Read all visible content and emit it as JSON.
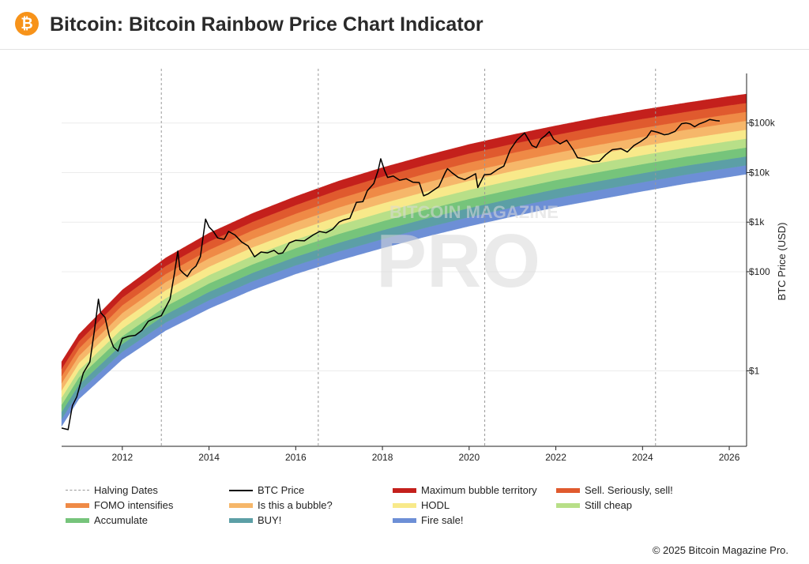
{
  "header": {
    "logo_icon": "bitcoin-icon",
    "logo_glyph": "₿",
    "title": "Bitcoin: Bitcoin Rainbow Price Chart Indicator"
  },
  "watermark": {
    "line1": "BITCOIN MAGAZINE",
    "line2": "PRO"
  },
  "chart_data": {
    "type": "line",
    "title": "Bitcoin: Bitcoin Rainbow Price Chart Indicator",
    "ylabel": "BTC Price (USD)",
    "xlabel": "",
    "y_scale": "log",
    "xlim": [
      2010.6,
      2026.4
    ],
    "ylim": [
      0.03,
      1000000
    ],
    "x_ticks": [
      {
        "value": 2012,
        "label": "2012"
      },
      {
        "value": 2014,
        "label": "2014"
      },
      {
        "value": 2016,
        "label": "2016"
      },
      {
        "value": 2018,
        "label": "2018"
      },
      {
        "value": 2020,
        "label": "2020"
      },
      {
        "value": 2022,
        "label": "2022"
      },
      {
        "value": 2024,
        "label": "2024"
      },
      {
        "value": 2026,
        "label": "2026"
      }
    ],
    "y_ticks": [
      {
        "value": 1,
        "label": "$1"
      },
      {
        "value": 100,
        "label": "$100"
      },
      {
        "value": 1000,
        "label": "$1k"
      },
      {
        "value": 10000,
        "label": "$10k"
      },
      {
        "value": 100000,
        "label": "$100k"
      }
    ],
    "halving_dates": [
      2012.9,
      2016.52,
      2020.36,
      2024.3
    ],
    "rainbow": {
      "bottom_curve": [
        [
          2010.6,
          0.076
        ],
        [
          2011,
          0.27
        ],
        [
          2012,
          1.7
        ],
        [
          2013,
          6.5
        ],
        [
          2014,
          18
        ],
        [
          2015,
          43
        ],
        [
          2016,
          90
        ],
        [
          2017,
          170
        ],
        [
          2018,
          300
        ],
        [
          2019,
          510
        ],
        [
          2020,
          830
        ],
        [
          2021,
          1300
        ],
        [
          2022,
          2000
        ],
        [
          2023,
          2900
        ],
        [
          2024,
          4200
        ],
        [
          2025,
          6000
        ],
        [
          2026,
          8200
        ],
        [
          2026.4,
          9300
        ]
      ],
      "top_curve": [
        [
          2010.6,
          1.53
        ],
        [
          2011,
          5.5
        ],
        [
          2012,
          43
        ],
        [
          2013,
          190
        ],
        [
          2014,
          600
        ],
        [
          2015,
          1500
        ],
        [
          2016,
          3300
        ],
        [
          2017,
          6800
        ],
        [
          2018,
          12600
        ],
        [
          2019,
          22000
        ],
        [
          2020,
          37000
        ],
        [
          2021,
          58000
        ],
        [
          2022,
          88000
        ],
        [
          2023,
          130000
        ],
        [
          2024,
          185000
        ],
        [
          2025,
          255000
        ],
        [
          2026,
          345000
        ],
        [
          2026.4,
          385000
        ]
      ],
      "bands": [
        {
          "name": "Fire sale!",
          "color": "#6d8fd6"
        },
        {
          "name": "BUY!",
          "color": "#5c9fa6"
        },
        {
          "name": "Accumulate",
          "color": "#76c47b"
        },
        {
          "name": "Still cheap",
          "color": "#b8df88"
        },
        {
          "name": "HODL",
          "color": "#f8e98a"
        },
        {
          "name": "Is this a bubble?",
          "color": "#f6b76a"
        },
        {
          "name": "FOMO intensifies",
          "color": "#ef8a46"
        },
        {
          "name": "Sell. Seriously, sell!",
          "color": "#e05a2e"
        },
        {
          "name": "Maximum bubble territory",
          "color": "#c4201c"
        }
      ]
    },
    "series": [
      {
        "name": "BTC Price",
        "color": "#000000",
        "points": [
          [
            2010.6,
            0.07
          ],
          [
            2010.75,
            0.065
          ],
          [
            2010.85,
            0.2
          ],
          [
            2010.95,
            0.3
          ],
          [
            2011.1,
            0.9
          ],
          [
            2011.25,
            1.5
          ],
          [
            2011.35,
            6
          ],
          [
            2011.45,
            28
          ],
          [
            2011.5,
            15
          ],
          [
            2011.6,
            12
          ],
          [
            2011.7,
            5
          ],
          [
            2011.8,
            3
          ],
          [
            2011.9,
            2.5
          ],
          [
            2012.0,
            4.5
          ],
          [
            2012.15,
            5
          ],
          [
            2012.3,
            5.2
          ],
          [
            2012.45,
            6.5
          ],
          [
            2012.6,
            10
          ],
          [
            2012.75,
            11.5
          ],
          [
            2012.9,
            13
          ],
          [
            2013.1,
            28
          ],
          [
            2013.2,
            90
          ],
          [
            2013.28,
            260
          ],
          [
            2013.33,
            110
          ],
          [
            2013.4,
            95
          ],
          [
            2013.5,
            80
          ],
          [
            2013.6,
            110
          ],
          [
            2013.7,
            130
          ],
          [
            2013.8,
            200
          ],
          [
            2013.92,
            1150
          ],
          [
            2014.0,
            800
          ],
          [
            2014.1,
            650
          ],
          [
            2014.2,
            480
          ],
          [
            2014.35,
            450
          ],
          [
            2014.45,
            650
          ],
          [
            2014.6,
            550
          ],
          [
            2014.75,
            400
          ],
          [
            2014.9,
            330
          ],
          [
            2015.05,
            200
          ],
          [
            2015.2,
            250
          ],
          [
            2015.35,
            240
          ],
          [
            2015.5,
            270
          ],
          [
            2015.6,
            230
          ],
          [
            2015.7,
            240
          ],
          [
            2015.85,
            380
          ],
          [
            2016.0,
            430
          ],
          [
            2016.2,
            420
          ],
          [
            2016.4,
            550
          ],
          [
            2016.55,
            650
          ],
          [
            2016.7,
            610
          ],
          [
            2016.85,
            720
          ],
          [
            2017.0,
            1000
          ],
          [
            2017.1,
            1100
          ],
          [
            2017.25,
            1200
          ],
          [
            2017.4,
            2500
          ],
          [
            2017.55,
            2600
          ],
          [
            2017.65,
            4300
          ],
          [
            2017.8,
            6000
          ],
          [
            2017.9,
            11000
          ],
          [
            2017.96,
            19000
          ],
          [
            2018.05,
            11000
          ],
          [
            2018.12,
            8000
          ],
          [
            2018.25,
            8500
          ],
          [
            2018.4,
            7000
          ],
          [
            2018.55,
            7500
          ],
          [
            2018.7,
            6400
          ],
          [
            2018.85,
            6300
          ],
          [
            2018.95,
            3400
          ],
          [
            2019.05,
            3700
          ],
          [
            2019.3,
            5200
          ],
          [
            2019.45,
            10000
          ],
          [
            2019.5,
            12000
          ],
          [
            2019.6,
            10000
          ],
          [
            2019.75,
            8000
          ],
          [
            2019.9,
            7200
          ],
          [
            2020.0,
            8000
          ],
          [
            2020.15,
            9500
          ],
          [
            2020.2,
            5000
          ],
          [
            2020.35,
            9000
          ],
          [
            2020.5,
            9300
          ],
          [
            2020.65,
            11500
          ],
          [
            2020.8,
            13500
          ],
          [
            2020.95,
            29000
          ],
          [
            2021.1,
            45000
          ],
          [
            2021.28,
            63000
          ],
          [
            2021.45,
            35000
          ],
          [
            2021.55,
            32000
          ],
          [
            2021.65,
            47000
          ],
          [
            2021.75,
            55000
          ],
          [
            2021.85,
            67000
          ],
          [
            2021.95,
            47000
          ],
          [
            2022.1,
            38000
          ],
          [
            2022.25,
            45000
          ],
          [
            2022.4,
            29000
          ],
          [
            2022.5,
            20000
          ],
          [
            2022.65,
            19000
          ],
          [
            2022.85,
            16500
          ],
          [
            2023.0,
            16800
          ],
          [
            2023.15,
            23000
          ],
          [
            2023.3,
            29000
          ],
          [
            2023.5,
            30500
          ],
          [
            2023.65,
            26000
          ],
          [
            2023.8,
            35000
          ],
          [
            2023.95,
            42000
          ],
          [
            2024.1,
            52000
          ],
          [
            2024.2,
            70000
          ],
          [
            2024.35,
            65000
          ],
          [
            2024.5,
            58000
          ],
          [
            2024.6,
            60000
          ],
          [
            2024.75,
            68000
          ],
          [
            2024.9,
            97000
          ],
          [
            2025.0,
            100000
          ],
          [
            2025.1,
            96000
          ],
          [
            2025.2,
            84000
          ],
          [
            2025.3,
            95000
          ],
          [
            2025.45,
            107000
          ],
          [
            2025.55,
            118000
          ],
          [
            2025.7,
            112000
          ],
          [
            2025.78,
            110000
          ]
        ]
      }
    ]
  },
  "legend": [
    {
      "label": "Halving Dates",
      "kind": "dashed",
      "color": "#999999"
    },
    {
      "label": "BTC Price",
      "kind": "line",
      "color": "#000000"
    },
    {
      "label": "Maximum bubble territory",
      "kind": "band",
      "color": "#c4201c"
    },
    {
      "label": "Sell. Seriously, sell!",
      "kind": "band",
      "color": "#e05a2e"
    },
    {
      "label": "FOMO intensifies",
      "kind": "band",
      "color": "#ef8a46"
    },
    {
      "label": "Is this a bubble?",
      "kind": "band",
      "color": "#f6b76a"
    },
    {
      "label": "HODL",
      "kind": "band",
      "color": "#f8e98a"
    },
    {
      "label": "Still cheap",
      "kind": "band",
      "color": "#b8df88"
    },
    {
      "label": "Accumulate",
      "kind": "band",
      "color": "#76c47b"
    },
    {
      "label": "BUY!",
      "kind": "band",
      "color": "#5c9fa6"
    },
    {
      "label": "Fire sale!",
      "kind": "band",
      "color": "#6d8fd6"
    }
  ],
  "footer": {
    "copyright": "© 2025 Bitcoin Magazine Pro."
  }
}
